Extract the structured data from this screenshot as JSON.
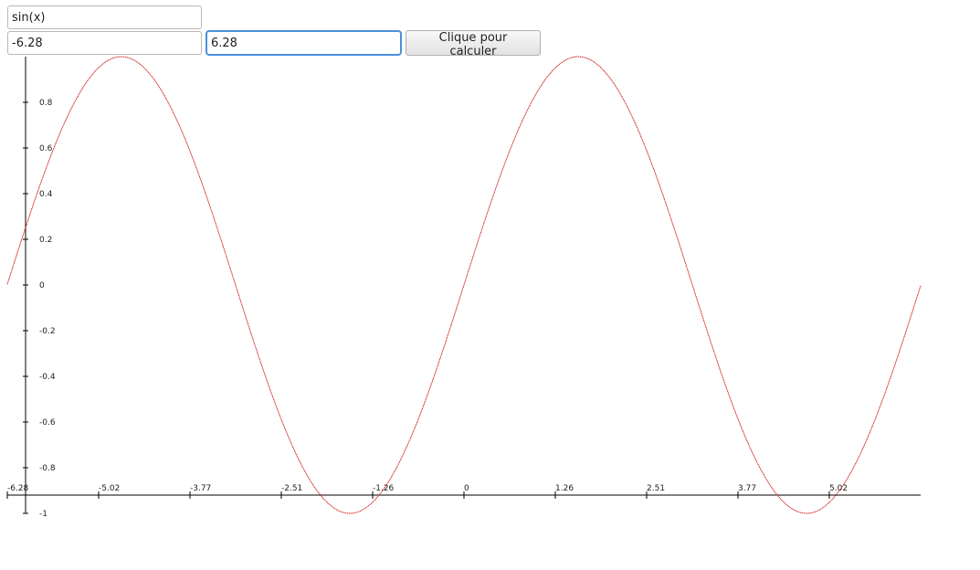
{
  "form": {
    "expression_value": "sin(x)",
    "x_min_value": "-6.28",
    "x_max_value": "6.28",
    "submit_label": "Clique pour calculer"
  },
  "colors": {
    "curve": "#cc0000",
    "axis": "#000000",
    "focus_border": "#4a90d9"
  },
  "chart_data": {
    "type": "line",
    "function": "sin(x)",
    "xlim": [
      -6.28,
      6.28
    ],
    "ylim": [
      -1,
      1
    ],
    "x_tick_labels": [
      "-6.28",
      "-5.02",
      "-3.77",
      "-2.51",
      "-1.26",
      "0",
      "1.26",
      "2.51",
      "3.77",
      "5.02"
    ],
    "y_tick_labels": [
      "0.8",
      "0.6",
      "0.4",
      "0.2",
      "0",
      "-0.2",
      "-0.4",
      "-0.6",
      "-0.8",
      "-1"
    ],
    "y_tick_values": [
      0.8,
      0.6,
      0.4,
      0.2,
      0,
      -0.2,
      -0.4,
      -0.6,
      -0.8,
      -1
    ],
    "grid": false
  }
}
